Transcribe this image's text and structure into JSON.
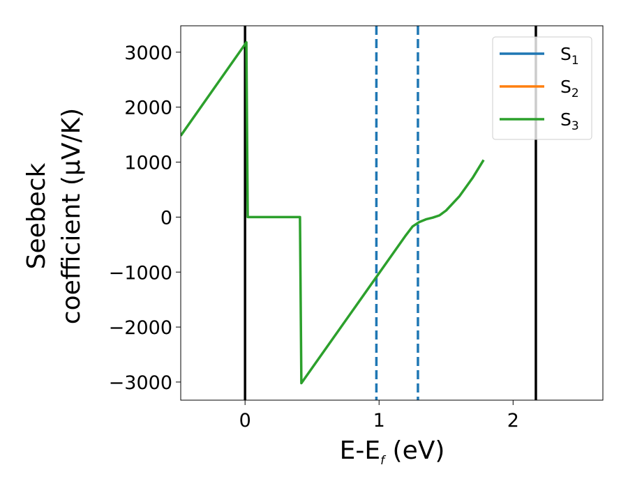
{
  "chart_data": {
    "type": "line",
    "xlabel": {
      "main": "E-E",
      "sub": "f",
      "tail": " (eV)"
    },
    "ylabel": {
      "line1": "Seebeck",
      "line2": "coefficient  (μV/K)"
    },
    "xlim": [
      -0.48,
      2.67
    ],
    "ylim": [
      -3330,
      3480
    ],
    "xticks": [
      {
        "value": 0,
        "label": "0"
      },
      {
        "value": 1,
        "label": "1"
      },
      {
        "value": 2,
        "label": "2"
      }
    ],
    "yticks": [
      {
        "value": 3000,
        "label": "3000"
      },
      {
        "value": 2000,
        "label": "2000"
      },
      {
        "value": 1000,
        "label": "1000"
      },
      {
        "value": 0,
        "label": "0"
      },
      {
        "value": -1000,
        "label": "−1000"
      },
      {
        "value": -2000,
        "label": "−2000"
      },
      {
        "value": -3000,
        "label": "−3000"
      }
    ],
    "series": [
      {
        "name": "S",
        "sub": "1",
        "color": "#1f77b4",
        "points": []
      },
      {
        "name": "S",
        "sub": "2",
        "color": "#ff7f0e",
        "points": []
      },
      {
        "name": "S",
        "sub": "3",
        "color": "#2ca02c",
        "points": [
          [
            -0.48,
            1480
          ],
          [
            0.01,
            3180
          ],
          [
            0.02,
            0
          ],
          [
            0.41,
            0
          ],
          [
            0.42,
            -3020
          ],
          [
            1.2,
            -330
          ],
          [
            1.25,
            -170
          ],
          [
            1.3,
            -90
          ],
          [
            1.35,
            -40
          ],
          [
            1.4,
            -10
          ],
          [
            1.45,
            30
          ],
          [
            1.5,
            120
          ],
          [
            1.6,
            380
          ],
          [
            1.7,
            720
          ],
          [
            1.78,
            1040
          ]
        ]
      }
    ],
    "vlines": [
      {
        "x": 0.0,
        "color": "#000000",
        "style": "solid"
      },
      {
        "x": 2.17,
        "color": "#000000",
        "style": "solid"
      },
      {
        "x": 0.98,
        "color": "#1f77b4",
        "style": "dashed"
      },
      {
        "x": 1.29,
        "color": "#1f77b4",
        "style": "dashed"
      }
    ],
    "legend": {
      "placement": "top-right"
    },
    "grid": false
  }
}
